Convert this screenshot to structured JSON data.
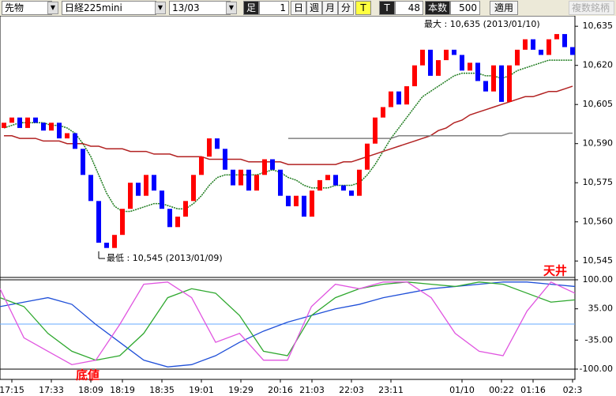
{
  "toolbar": {
    "market": "先物",
    "symbol": "日経225mini",
    "contract": "13/03",
    "bar_label": "足",
    "bar_input": 1,
    "period_buttons": [
      "日",
      "週",
      "月",
      "分",
      "T"
    ],
    "tick_label": "T",
    "tick_input": 48,
    "count_label": "本数",
    "count_input": 500,
    "apply_button": "適用",
    "multi_button": "複数銘柄"
  },
  "chart_data": [
    {
      "type": "candlestick",
      "annotations": {
        "max": "最大 : 10,635 (2013/01/10)",
        "min": "最低 : 10,545 (2013/01/09)"
      },
      "categories": [
        null,
        "17:15",
        null,
        null,
        null,
        null,
        "17:33",
        null,
        null,
        null,
        null,
        "18:09",
        null,
        null,
        null,
        "18:19",
        null,
        null,
        null,
        null,
        "18:35",
        null,
        null,
        null,
        null,
        "19:01",
        null,
        null,
        null,
        null,
        "19:29",
        null,
        null,
        null,
        null,
        "20:16",
        null,
        null,
        null,
        "21:03",
        null,
        null,
        null,
        null,
        "22:03",
        null,
        null,
        null,
        null,
        "23:11",
        null,
        null,
        null,
        null,
        null,
        null,
        null,
        null,
        "01/10",
        null,
        null,
        null,
        null,
        "00:22",
        null,
        null,
        null,
        "01:16",
        null,
        null,
        null,
        null,
        "02:3"
      ],
      "open": [
        10596,
        10598,
        10600,
        10596,
        10600,
        10598,
        10595,
        10598,
        10592,
        10594,
        10588,
        10578,
        10568,
        10552,
        10550,
        10555,
        10565,
        10575,
        10570,
        10578,
        10572,
        10565,
        10558,
        10562,
        10568,
        10578,
        10585,
        10592,
        10588,
        10580,
        10574,
        10580,
        10572,
        10578,
        10584,
        10580,
        10570,
        10566,
        10570,
        10562,
        10572,
        10576,
        10578,
        10574,
        10572,
        10570,
        10580,
        10590,
        10600,
        10604,
        10610,
        10605,
        10612,
        10620,
        10626,
        10616,
        10622,
        10626,
        10624,
        10618,
        10621,
        10614,
        10610,
        10620,
        10606,
        10620,
        10626,
        10630,
        10626,
        10624,
        10630,
        10632,
        10627
      ],
      "close": [
        10598,
        10600,
        10596,
        10600,
        10598,
        10595,
        10598,
        10592,
        10594,
        10588,
        10578,
        10568,
        10552,
        10550,
        10555,
        10565,
        10575,
        10570,
        10578,
        10572,
        10565,
        10558,
        10562,
        10568,
        10578,
        10585,
        10592,
        10588,
        10580,
        10574,
        10580,
        10572,
        10578,
        10584,
        10580,
        10570,
        10566,
        10570,
        10562,
        10572,
        10576,
        10578,
        10574,
        10572,
        10570,
        10580,
        10590,
        10600,
        10604,
        10610,
        10605,
        10612,
        10620,
        10626,
        10616,
        10622,
        10626,
        10624,
        10618,
        10621,
        10614,
        10610,
        10620,
        10606,
        10620,
        10626,
        10630,
        10626,
        10624,
        10630,
        10632,
        10627,
        10624
      ],
      "up_color": "#ff0000",
      "down_color": "#0000ff",
      "lines": [
        {
          "color": "#1e7b1e",
          "values": [
            10596,
            10597,
            10598,
            10598,
            10598,
            10598,
            10597,
            10597,
            10596,
            10594,
            10590,
            10585,
            10578,
            10571,
            10566,
            10564,
            10564,
            10565,
            10566,
            10567,
            10567,
            10566,
            10565,
            10565,
            10567,
            10570,
            10574,
            10577,
            10578,
            10578,
            10578,
            10578,
            10578,
            10579,
            10580,
            10579,
            10577,
            10576,
            10574,
            10573,
            10573,
            10573,
            10574,
            10574,
            10574,
            10575,
            10578,
            10582,
            10587,
            10592,
            10596,
            10600,
            10604,
            10608,
            10610,
            10612,
            10614,
            10616,
            10617,
            10617,
            10617,
            10616,
            10616,
            10615,
            10616,
            10618,
            10619,
            10620,
            10621,
            10622,
            10622,
            10622,
            10622
          ]
        },
        {
          "color": "#b22222",
          "values": [
            10593,
            10593,
            10592,
            10592,
            10592,
            10591,
            10591,
            10591,
            10590,
            10590,
            10590,
            10589,
            10589,
            10588,
            10588,
            10588,
            10587,
            10587,
            10587,
            10586,
            10586,
            10586,
            10585,
            10585,
            10585,
            10585,
            10584,
            10584,
            10584,
            10584,
            10584,
            10583,
            10583,
            10583,
            10583,
            10583,
            10582,
            10582,
            10582,
            10582,
            10582,
            10582,
            10582,
            10583,
            10583,
            10584,
            10585,
            10586,
            10587,
            10588,
            10589,
            10590,
            10591,
            10592,
            10593,
            10595,
            10596,
            10598,
            10599,
            10601,
            10602,
            10603,
            10604,
            10605,
            10606,
            10607,
            10608,
            10608,
            10609,
            10610,
            10610,
            10611,
            10612
          ]
        },
        {
          "color": "#808080",
          "values": [
            null,
            null,
            null,
            null,
            null,
            null,
            null,
            null,
            null,
            null,
            null,
            null,
            null,
            null,
            null,
            null,
            null,
            null,
            null,
            null,
            null,
            null,
            null,
            null,
            null,
            null,
            null,
            null,
            null,
            null,
            null,
            null,
            null,
            null,
            null,
            null,
            10592,
            10592,
            10592,
            10592,
            10592,
            10592,
            10592,
            10592,
            10592,
            10592,
            10592,
            10592,
            10592,
            10592,
            10593,
            10593,
            10593,
            10593,
            10593,
            10593,
            10593,
            10593,
            10593,
            10593,
            10593,
            10593,
            10593,
            10593,
            10594,
            10594,
            10594,
            10594,
            10594,
            10594,
            10594,
            10594,
            10594
          ]
        }
      ],
      "ylim": [
        10539,
        10639
      ],
      "yticks": [
        {
          "value": 10635,
          "label": "10,635"
        },
        {
          "value": 10620,
          "label": "10,620"
        },
        {
          "value": 10605,
          "label": "10,605"
        },
        {
          "value": 10590,
          "label": "10,590"
        },
        {
          "value": 10575,
          "label": "10,575"
        },
        {
          "value": 10560,
          "label": "10,560"
        },
        {
          "value": 10545,
          "label": "10,545"
        }
      ]
    },
    {
      "type": "line",
      "annotations": {
        "ceiling": "天井",
        "floor": "底値"
      },
      "series": [
        {
          "color": "#1f4fd8",
          "values": [
            40,
            50,
            60,
            45,
            0,
            -40,
            -80,
            -95,
            -90,
            -70,
            -40,
            -15,
            5,
            20,
            35,
            45,
            60,
            70,
            80,
            85,
            90,
            95,
            95,
            90,
            85
          ]
        },
        {
          "color": "#2fa82f",
          "values": [
            60,
            40,
            -20,
            -60,
            -80,
            -70,
            -20,
            60,
            80,
            70,
            20,
            -60,
            -70,
            20,
            60,
            80,
            90,
            95,
            90,
            85,
            95,
            90,
            70,
            50,
            55
          ]
        },
        {
          "color": "#e055e0",
          "values": [
            80,
            -30,
            -60,
            -90,
            -80,
            0,
            90,
            95,
            60,
            -40,
            -20,
            -80,
            -80,
            40,
            90,
            80,
            95,
            95,
            60,
            -20,
            -60,
            -70,
            30,
            95,
            70
          ]
        }
      ],
      "ylim": [
        -119.5,
        103.5
      ],
      "yticks": [
        {
          "value": 100,
          "label": "100.00"
        },
        {
          "value": 35,
          "label": "35.00"
        },
        {
          "value": -35,
          "label": "-35.00"
        },
        {
          "value": -100,
          "label": "-100.00"
        }
      ]
    }
  ]
}
